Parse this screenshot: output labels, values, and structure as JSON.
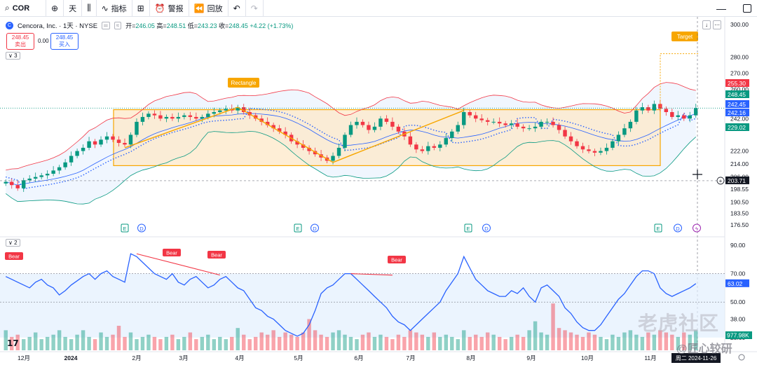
{
  "toolbar": {
    "symbol": "COR",
    "interval": "天",
    "indicators": "指标",
    "alert": "警报",
    "replay": "回放"
  },
  "legend": {
    "name": "Cencora, Inc. · 1天 · NYSE",
    "open_label": "开=",
    "open": "246.05",
    "high_label": "高=",
    "high": "248.51",
    "low_label": "低=",
    "low": "243.23",
    "close_label": "收=",
    "close": "248.45",
    "change": "+4.22 (+1.73%)"
  },
  "quote": {
    "sell_price": "248.45",
    "sell_label": "卖出",
    "spread": "0.00",
    "buy_price": "248.45",
    "buy_label": "买入"
  },
  "pane_labels": {
    "main": "3",
    "osc": "2"
  },
  "colors": {
    "up": "#089981",
    "down": "#f23645",
    "accent": "#2962ff",
    "box_stroke": "#f7a600",
    "box_fill": "#fde8c8",
    "bb_upper": "#f23645",
    "bb_lower": "#089981",
    "rsi_line": "#2962ff",
    "rsi_band": "#e3effd",
    "badge": "#f7a600",
    "bear_badge": "#f23645"
  },
  "chart_data": [
    {
      "type": "candlestick",
      "title": "Cencora, Inc. · 1天 · NYSE",
      "x_ticks": [
        "12月",
        "2024",
        "2月",
        "3月",
        "4月",
        "5月",
        "6月",
        "7月",
        "8月",
        "9月",
        "10月",
        "11月"
      ],
      "y_ticks": [
        300.0,
        280.0,
        270.0,
        260.0,
        250.0,
        242.0,
        222.0,
        214.0,
        206.0,
        198.55,
        190.5,
        183.5,
        176.5
      ],
      "ylim": [
        170,
        303
      ],
      "close_series": [
        203,
        201,
        199,
        204,
        205,
        206,
        207,
        208,
        210,
        212,
        215,
        219,
        222,
        224,
        228,
        226,
        229,
        231,
        229,
        227,
        226,
        232,
        240,
        243,
        245,
        244,
        242,
        243,
        242,
        243,
        244,
        243,
        242,
        243,
        245,
        246,
        247,
        248,
        247,
        249,
        246,
        244,
        242,
        240,
        238,
        236,
        234,
        232,
        228,
        226,
        224,
        222,
        220,
        218,
        216,
        219,
        224,
        232,
        238,
        240,
        238,
        235,
        237,
        242,
        240,
        237,
        234,
        231,
        226,
        223,
        222,
        225,
        224,
        226,
        230,
        234,
        238,
        246,
        244,
        242,
        241,
        240,
        240,
        239,
        238,
        239,
        237,
        236,
        236,
        237,
        240,
        240,
        238,
        235,
        231,
        228,
        225,
        223,
        222,
        221,
        222,
        224,
        228,
        232,
        236,
        240,
        247,
        249,
        247,
        251,
        248,
        246,
        243,
        244,
        242,
        244,
        248.45
      ],
      "annotations": [
        {
          "text": "Rectangle",
          "kind": "box",
          "price_top": 247.5,
          "price_bottom": 213
        },
        {
          "text": "Target",
          "kind": "projection",
          "price": 282
        },
        {
          "text": "E",
          "kind": "earnings"
        },
        {
          "text": "D",
          "kind": "dividend"
        }
      ],
      "price_labels": [
        {
          "text": "255.30",
          "color": "#f23645"
        },
        {
          "text": "248.45",
          "color": "#089981"
        },
        {
          "text": "242.45",
          "color": "#2962ff"
        },
        {
          "text": "242.16",
          "color": "#2962ff"
        },
        {
          "text": "229.02",
          "color": "#089981"
        },
        {
          "text": "203.71",
          "color": "#131722"
        }
      ]
    },
    {
      "type": "line",
      "title": "",
      "y_ticks": [
        90.0,
        70.0,
        50.0,
        38.0,
        25.0
      ],
      "ylim": [
        20,
        92
      ],
      "last_value": "63.02",
      "volume_label": "977.98K",
      "divergence_labels": [
        "Bear",
        "Bear",
        "Bear",
        "Bear"
      ],
      "rsi_series": [
        68,
        66,
        64,
        62,
        60,
        64,
        66,
        62,
        60,
        55,
        58,
        62,
        65,
        68,
        70,
        66,
        70,
        72,
        68,
        66,
        64,
        84,
        82,
        78,
        74,
        70,
        68,
        66,
        70,
        64,
        62,
        66,
        68,
        64,
        60,
        62,
        66,
        68,
        64,
        60,
        58,
        52,
        46,
        44,
        40,
        38,
        34,
        30,
        28,
        26,
        28,
        34,
        44,
        56,
        60,
        62,
        66,
        70,
        70,
        66,
        62,
        58,
        54,
        50,
        46,
        40,
        36,
        34,
        30,
        34,
        38,
        42,
        46,
        50,
        58,
        64,
        70,
        82,
        74,
        66,
        62,
        58,
        56,
        54,
        54,
        58,
        56,
        60,
        54,
        50,
        60,
        62,
        58,
        54,
        46,
        42,
        36,
        32,
        30,
        30,
        34,
        40,
        46,
        52,
        56,
        62,
        68,
        72,
        72,
        70,
        60,
        56,
        54,
        56,
        58,
        60,
        63
      ],
      "volume_series": [
        0.9,
        0.6,
        0.7,
        0.5,
        0.6,
        0.8,
        0.5,
        0.6,
        0.7,
        0.9,
        0.6,
        0.5,
        0.7,
        0.9,
        0.6,
        0.5,
        0.8,
        0.6,
        0.7,
        1.1,
        0.6,
        0.8,
        0.5,
        0.6,
        0.7,
        0.6,
        0.5,
        0.6,
        0.7,
        0.5,
        0.6,
        0.8,
        0.5,
        0.6,
        0.7,
        0.5,
        0.6,
        0.5,
        0.6,
        1.0,
        0.7,
        0.5,
        0.6,
        0.8,
        0.7,
        0.9,
        0.6,
        0.8,
        0.7,
        0.6,
        0.8,
        1.4,
        0.9,
        0.7,
        0.6,
        0.8,
        0.9,
        0.7,
        0.6,
        0.5,
        0.7,
        0.8,
        0.6,
        0.7,
        0.6,
        0.5,
        0.7,
        0.6,
        0.9,
        0.8,
        0.7,
        0.6,
        0.8,
        0.6,
        0.7,
        0.6,
        0.5,
        0.9,
        0.6,
        0.7,
        0.6,
        0.8,
        0.7,
        0.6,
        0.5,
        0.6,
        0.7,
        0.6,
        0.9,
        1.3,
        0.8,
        0.7,
        2.1,
        1.0,
        0.9,
        0.8,
        0.7,
        0.6,
        0.8,
        0.7,
        0.6,
        0.5,
        0.7,
        0.6,
        0.8,
        0.9,
        0.7,
        0.6,
        0.8,
        0.7,
        0.9,
        0.8,
        0.7,
        0.6,
        0.8,
        0.7,
        0.9
      ]
    }
  ],
  "bottom_bar": {
    "date": "周二 2024-11-26"
  },
  "watermark": {
    "main": "老虎社区",
    "sub": "@匠心较研"
  }
}
